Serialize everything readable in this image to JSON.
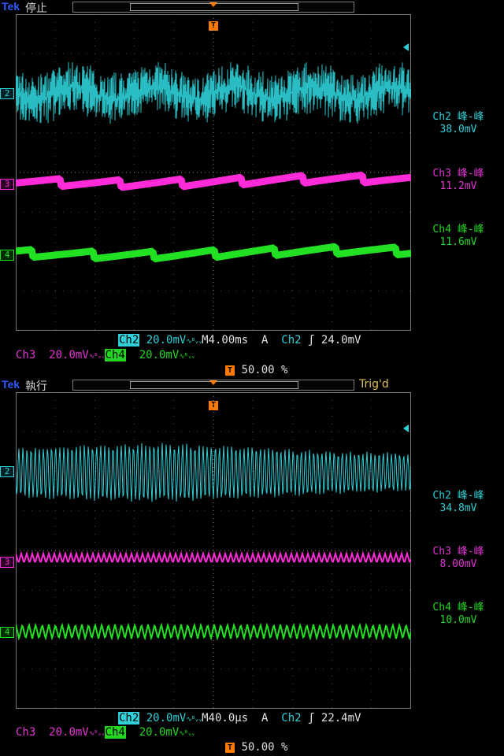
{
  "scopes": [
    {
      "brand": "Tek",
      "state": "停止",
      "trig_status": "",
      "markers": {
        "ch2": "2",
        "ch3": "3",
        "ch4": "4"
      },
      "trigger_letter": "T",
      "measurements": [
        {
          "label": "Ch2 峰-峰",
          "value": "38.0mV"
        },
        {
          "label": "Ch3 峰-峰",
          "value": "11.2mV"
        },
        {
          "label": "Ch4 峰-峰",
          "value": "11.6mV"
        }
      ],
      "row1": {
        "ch2": "Ch2",
        "ch2_scale": "20.0mV",
        "ch2_bw": "Ω",
        "timebase": "M4.00ms",
        "trig_src_label": "A",
        "trig_ch": "Ch2",
        "trig_level": "24.0mV"
      },
      "row2": {
        "ch3": "Ch3",
        "ch3_scale": "20.0mV",
        "ch3_bw": "Ω",
        "ch4": "Ch4",
        "ch4_scale": "20.0mV",
        "ch4_bw": "Ω"
      },
      "row3": {
        "pos_letter": "T",
        "position": "50.00 %"
      }
    },
    {
      "brand": "Tek",
      "state": "執行",
      "trig_status": "Trig'd",
      "markers": {
        "ch2": "2",
        "ch3": "3",
        "ch4": "4"
      },
      "trigger_letter": "T",
      "measurements": [
        {
          "label": "Ch2 峰-峰",
          "value": "34.8mV"
        },
        {
          "label": "Ch3 峰-峰",
          "value": "8.00mV"
        },
        {
          "label": "Ch4 峰-峰",
          "value": "10.0mV"
        }
      ],
      "row1": {
        "ch2": "Ch2",
        "ch2_scale": "20.0mV",
        "ch2_bw": "Ω",
        "timebase": "M40.0µs",
        "trig_src_label": "A",
        "trig_ch": "Ch2",
        "trig_level": "22.4mV"
      },
      "row2": {
        "ch3": "Ch3",
        "ch3_scale": "20.0mV",
        "ch3_bw": "Ω",
        "ch4": "Ch4",
        "ch4_scale": "20.0mV",
        "ch4_bw": "Ω"
      },
      "row3": {
        "pos_letter": "T",
        "position": "50.00 %"
      }
    }
  ],
  "colors": {
    "ch2": "#2fd0d8",
    "ch3": "#ff2ad8",
    "ch4": "#22e022",
    "trigger": "#ff7a00",
    "grid": "#5a5a5a"
  }
}
